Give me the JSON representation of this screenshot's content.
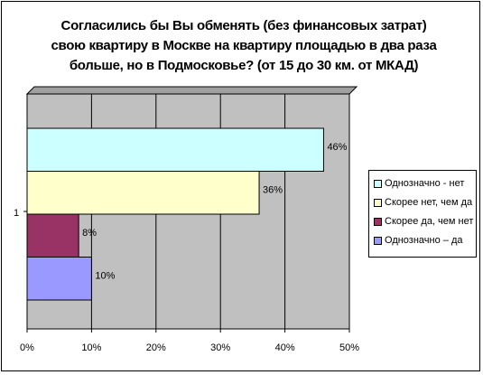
{
  "chart_data": {
    "type": "bar",
    "orientation": "horizontal",
    "title": "Согласились бы Вы обменять (без финансовых затрат) свою квартиру в Москве на квартиру площадью в два раза больше, но в Подмосковье? (от 15 до 30 км. от МКАД)",
    "title_lines": [
      "Согласились бы Вы обменять (без финансовых затрат)",
      "свою квартиру в Москве на квартиру площадью в два раза",
      "больше, но в Подмосковье? (от 15 до 30 км. от МКАД)"
    ],
    "categories": [
      "1"
    ],
    "xlim": [
      0,
      50
    ],
    "x_ticks": [
      "0%",
      "10%",
      "20%",
      "30%",
      "40%",
      "50%"
    ],
    "grid": true,
    "legend_position": "right",
    "series": [
      {
        "name": "Однозначно - нет",
        "value": 46,
        "label": "46%",
        "color": "#CCFFFF"
      },
      {
        "name": "Скорее нет, чем да",
        "value": 36,
        "label": "36%",
        "color": "#FFFFCC"
      },
      {
        "name": "Скорее да, чем нет",
        "value": 8,
        "label": "8%",
        "color": "#993366"
      },
      {
        "name": "Однозначно – да",
        "value": 10,
        "label": "10%",
        "color": "#9999FF"
      }
    ],
    "plot_background": "#C0C0C0"
  }
}
